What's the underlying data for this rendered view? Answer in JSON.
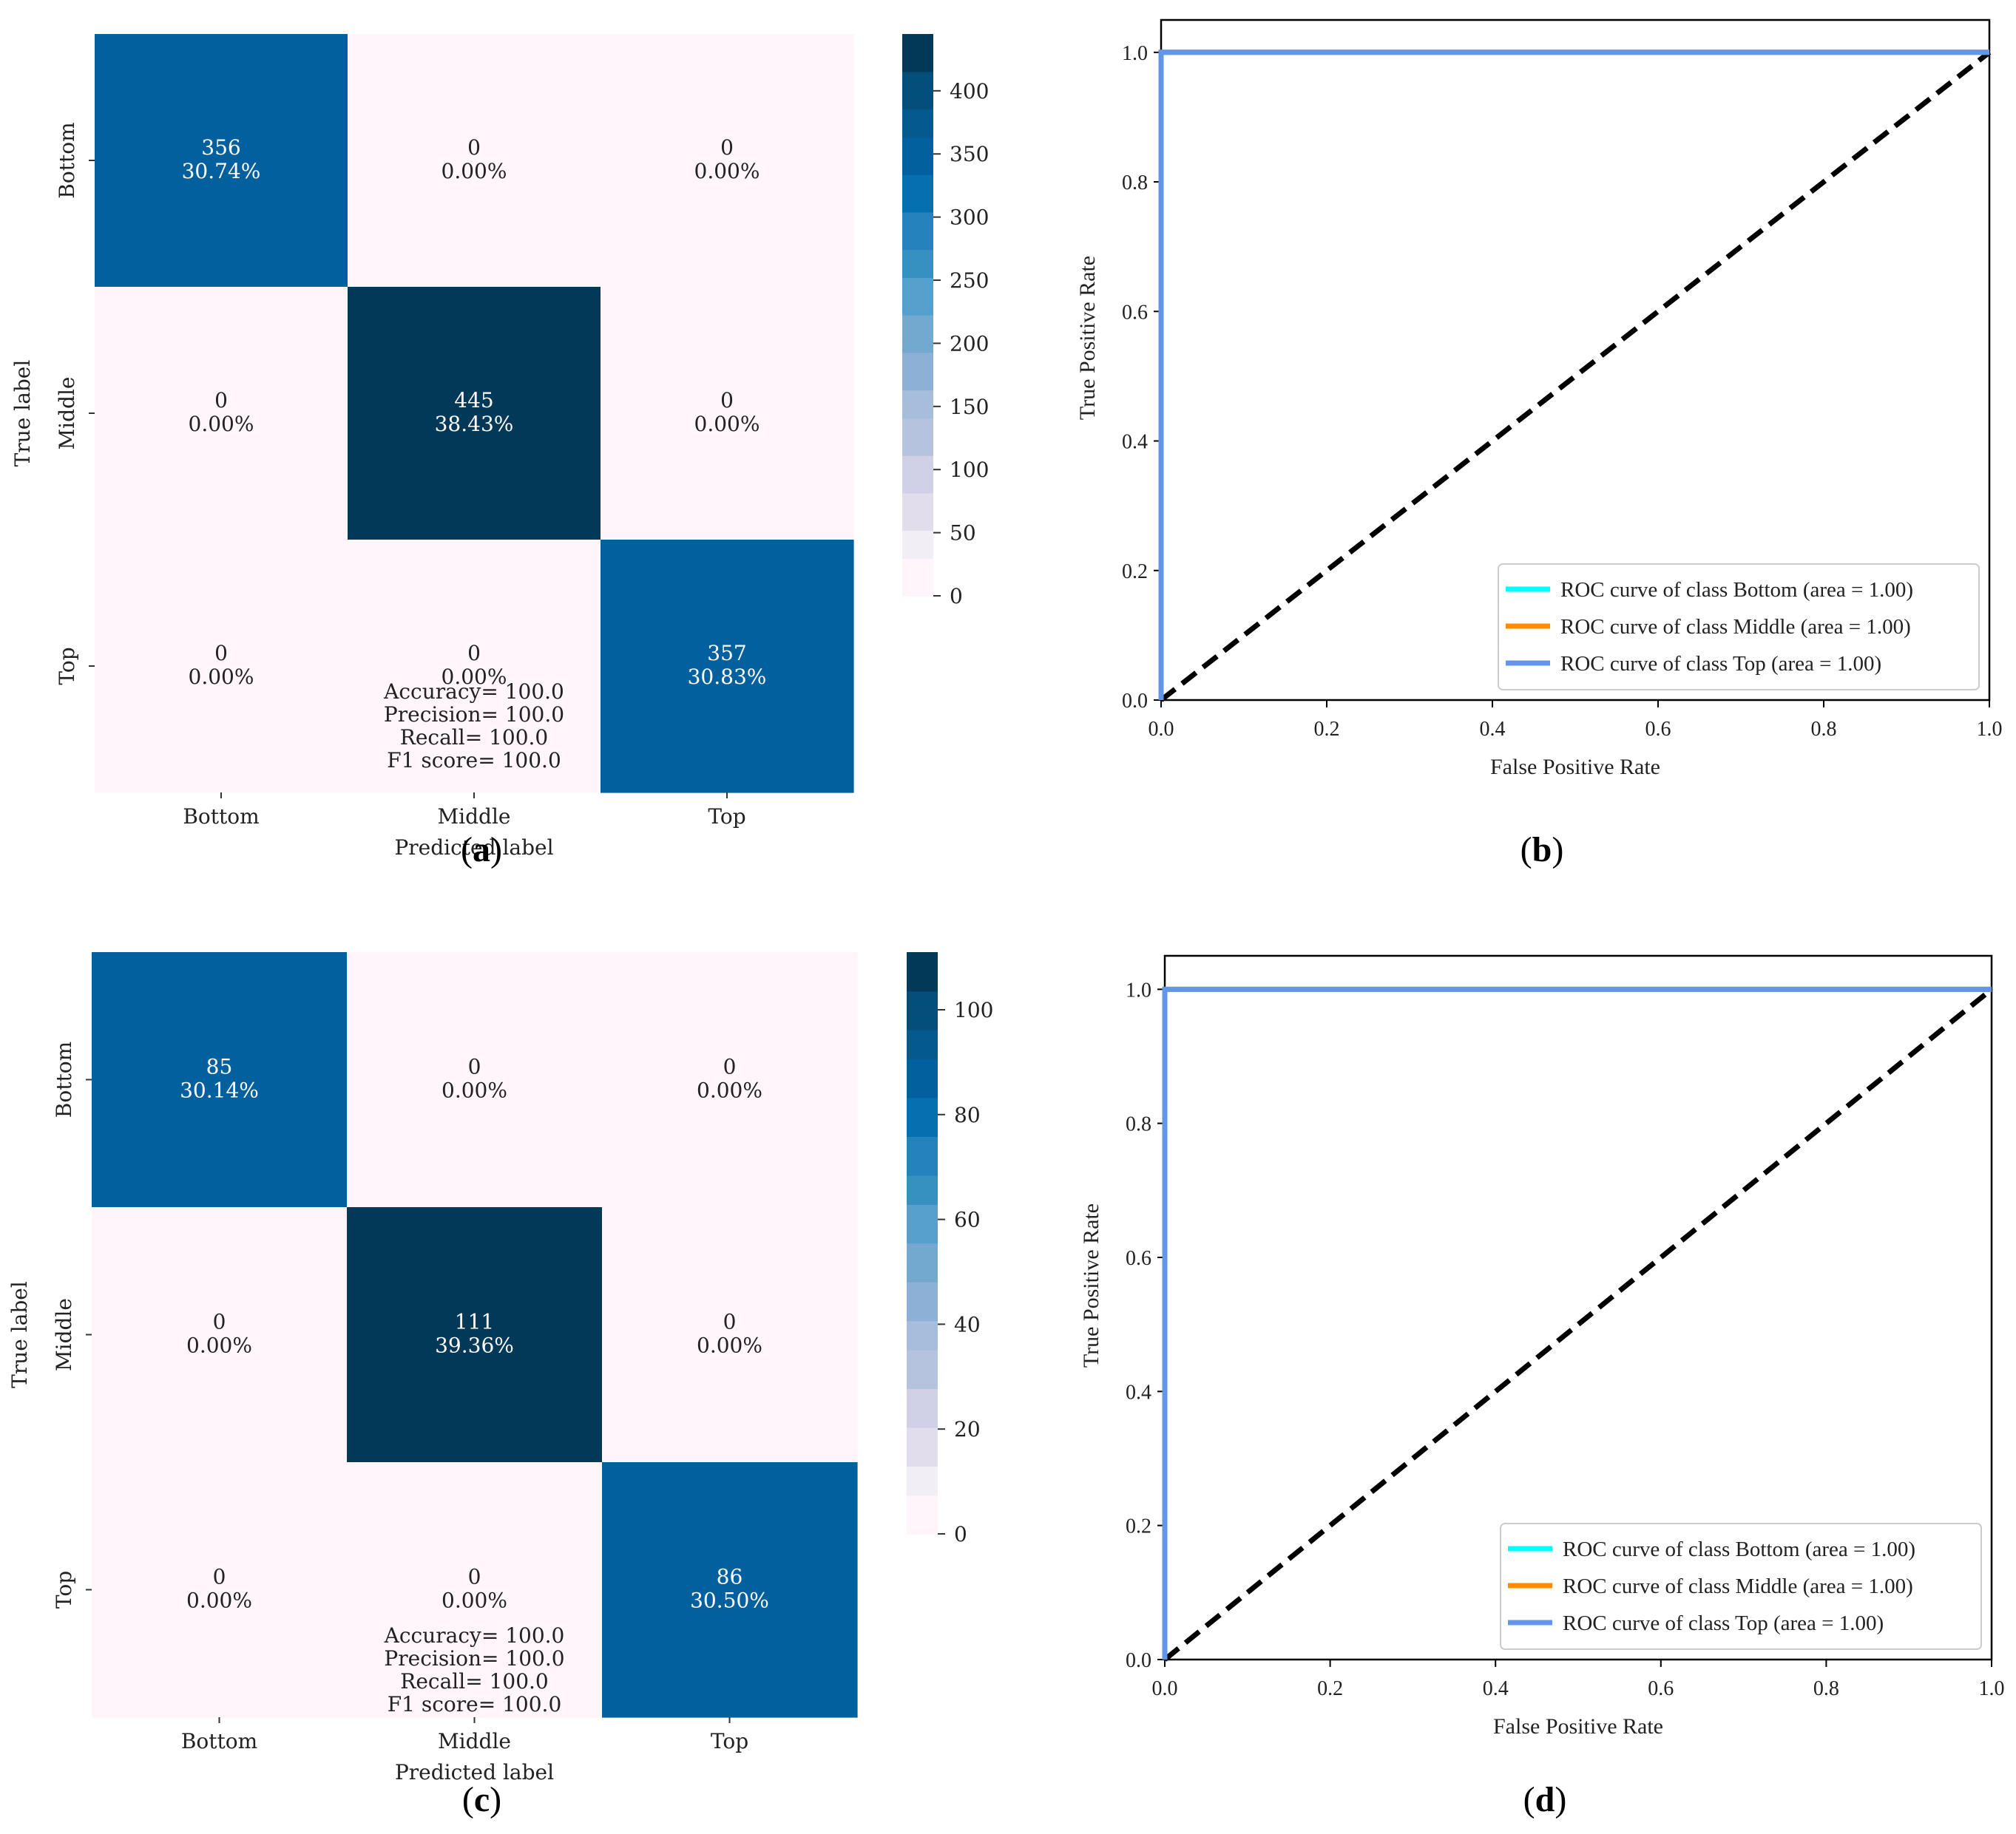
{
  "chart_data": [
    {
      "type": "heatmap",
      "panel_label": "a",
      "xlabel": "Predicted label",
      "ylabel": "True label",
      "classes": [
        "Bottom",
        "Middle",
        "Top"
      ],
      "counts": [
        [
          356,
          0,
          0
        ],
        [
          0,
          445,
          0
        ],
        [
          0,
          0,
          357
        ]
      ],
      "percents": [
        [
          "30.74%",
          "0.00%",
          "0.00%"
        ],
        [
          "0.00%",
          "38.43%",
          "0.00%"
        ],
        [
          "0.00%",
          "0.00%",
          "30.83%"
        ]
      ],
      "colorbar": {
        "min": 0,
        "max": 445,
        "ticks": [
          0,
          50,
          100,
          150,
          200,
          250,
          300,
          350,
          400
        ]
      },
      "metrics": [
        "Accuracy= 100.0",
        "Precision= 100.0",
        "Recall= 100.0",
        "F1 score= 100.0"
      ]
    },
    {
      "type": "line",
      "panel_label": "b",
      "xlabel": "False Positive Rate",
      "ylabel": "True Positive Rate",
      "xlim": [
        0,
        1
      ],
      "ylim": [
        0,
        1.05
      ],
      "ticks": [
        "0.0",
        "0.2",
        "0.4",
        "0.6",
        "0.8",
        "1.0"
      ],
      "series": [
        {
          "name": "ROC curve of class Bottom (area = 1.00)",
          "color": "#00ffff",
          "x": [
            0,
            0,
            1
          ],
          "y": [
            0,
            1,
            1
          ]
        },
        {
          "name": "ROC curve of class Middle (area = 1.00)",
          "color": "#ff8c00",
          "x": [
            0,
            0,
            1
          ],
          "y": [
            0,
            1,
            1
          ]
        },
        {
          "name": "ROC curve of class Top (area = 1.00)",
          "color": "#6495ed",
          "x": [
            0,
            0,
            1
          ],
          "y": [
            0,
            1,
            1
          ]
        }
      ],
      "diagonal": {
        "x": [
          0,
          1
        ],
        "y": [
          0,
          1
        ],
        "color": "#000000"
      },
      "legend_loc": "lower-right"
    },
    {
      "type": "heatmap",
      "panel_label": "c",
      "xlabel": "Predicted label",
      "ylabel": "True label",
      "classes": [
        "Bottom",
        "Middle",
        "Top"
      ],
      "counts": [
        [
          85,
          0,
          0
        ],
        [
          0,
          111,
          0
        ],
        [
          0,
          0,
          86
        ]
      ],
      "percents": [
        [
          "30.14%",
          "0.00%",
          "0.00%"
        ],
        [
          "0.00%",
          "39.36%",
          "0.00%"
        ],
        [
          "0.00%",
          "0.00%",
          "30.50%"
        ]
      ],
      "colorbar": {
        "min": 0,
        "max": 111,
        "ticks": [
          0,
          20,
          40,
          60,
          80,
          100
        ]
      },
      "metrics": [
        "Accuracy= 100.0",
        "Precision= 100.0",
        "Recall= 100.0",
        "F1 score= 100.0"
      ]
    },
    {
      "type": "line",
      "panel_label": "d",
      "xlabel": "False Positive Rate",
      "ylabel": "True Positive Rate",
      "xlim": [
        0,
        1
      ],
      "ylim": [
        0,
        1.05
      ],
      "ticks": [
        "0.0",
        "0.2",
        "0.4",
        "0.6",
        "0.8",
        "1.0"
      ],
      "series": [
        {
          "name": "ROC curve of class Bottom (area = 1.00)",
          "color": "#00ffff",
          "x": [
            0,
            0,
            1
          ],
          "y": [
            0,
            1,
            1
          ]
        },
        {
          "name": "ROC curve of class Middle (area = 1.00)",
          "color": "#ff8c00",
          "x": [
            0,
            0,
            1
          ],
          "y": [
            0,
            1,
            1
          ]
        },
        {
          "name": "ROC curve of class Top (area = 1.00)",
          "color": "#6495ed",
          "x": [
            0,
            0,
            1
          ],
          "y": [
            0,
            1,
            1
          ]
        }
      ],
      "diagonal": {
        "x": [
          0,
          1
        ],
        "y": [
          0,
          1
        ],
        "color": "#000000"
      },
      "legend_loc": "lower-right"
    }
  ]
}
